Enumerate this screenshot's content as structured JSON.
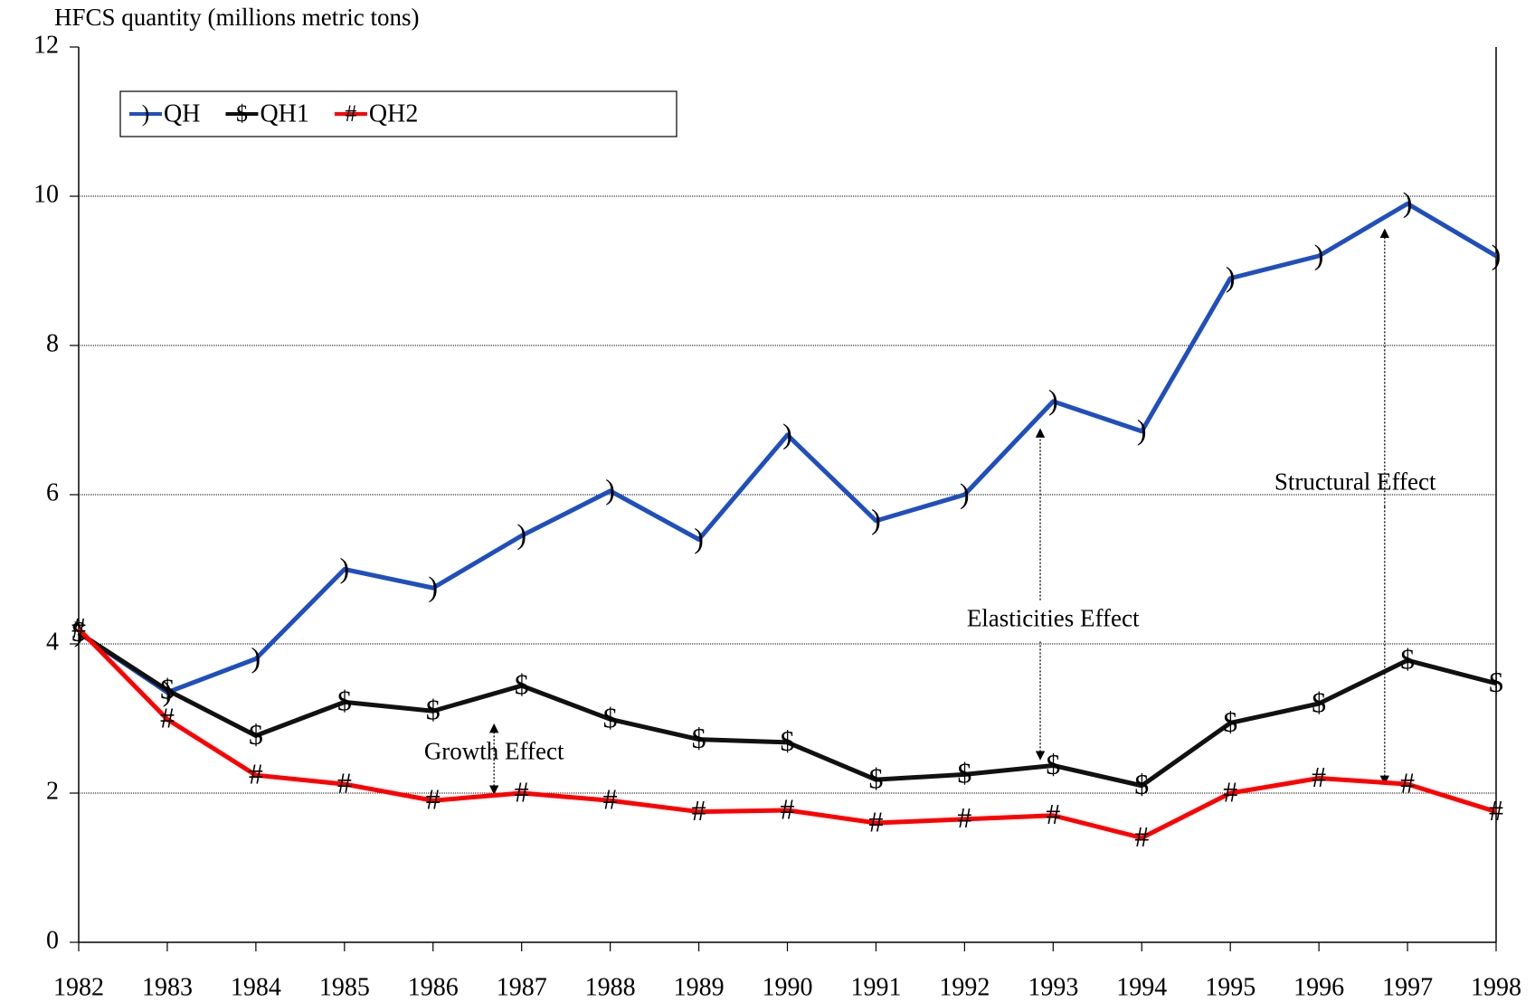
{
  "chart_data": {
    "type": "line",
    "y_label": "HFCS quantity (millions metric tons)",
    "categories": [
      "1982",
      "1983",
      "1984",
      "1985",
      "1986",
      "1987",
      "1988",
      "1989",
      "1990",
      "1991",
      "1992",
      "1993",
      "1994",
      "1995",
      "1996",
      "1997",
      "1998"
    ],
    "series": [
      {
        "name": "QH",
        "color": "#1f4fbf",
        "marker": ")",
        "values": [
          4.15,
          3.35,
          3.8,
          5.0,
          4.75,
          5.45,
          6.05,
          5.4,
          6.8,
          5.65,
          6.0,
          7.25,
          6.85,
          8.9,
          9.2,
          9.9,
          9.2
        ]
      },
      {
        "name": "QH1",
        "color": "#111111",
        "marker": "$",
        "values": [
          4.15,
          3.38,
          2.77,
          3.22,
          3.1,
          3.44,
          2.99,
          2.72,
          2.68,
          2.18,
          2.25,
          2.37,
          2.1,
          2.94,
          3.2,
          3.78,
          3.47
        ]
      },
      {
        "name": "QH2",
        "color": "#ff0000",
        "marker": "#",
        "values": [
          4.2,
          2.99,
          2.24,
          2.12,
          1.9,
          2.0,
          1.9,
          1.75,
          1.77,
          1.6,
          1.65,
          1.7,
          1.4,
          2.0,
          2.2,
          2.12,
          1.75
        ]
      }
    ],
    "ylim": [
      0,
      12
    ],
    "yticks": [
      0,
      2,
      4,
      6,
      8,
      10,
      12
    ],
    "grid": true,
    "legend": "top-left",
    "annotations": [
      "Growth Effect",
      "Elasticities Effect",
      "Structural Effect"
    ]
  }
}
